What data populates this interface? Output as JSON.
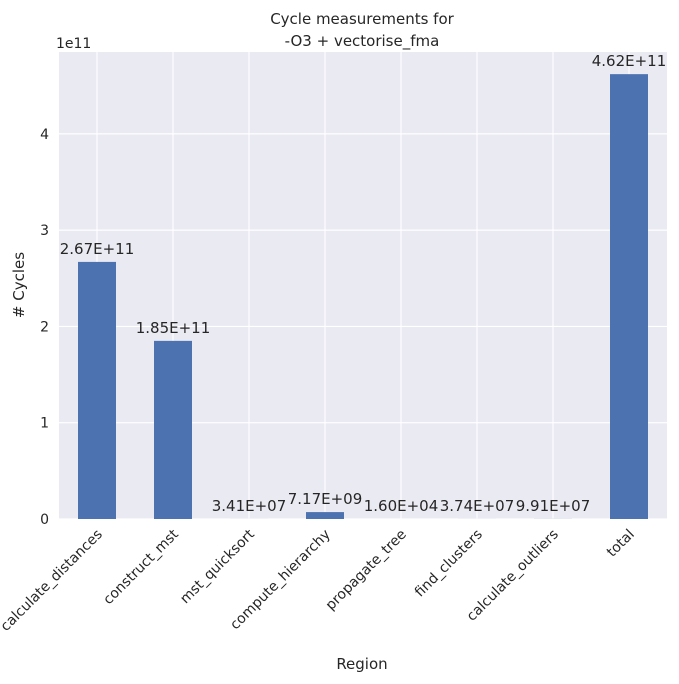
{
  "chart_data": {
    "type": "bar",
    "title_line1": "Cycle measurements for",
    "title_line2": "-O3 + vectorise_fma",
    "xlabel": "Region",
    "ylabel": "# Cycles",
    "y_offset_label": "1e11",
    "ylim": [
      0,
      485000000000.0
    ],
    "yticks": [
      0,
      100000000000.0,
      200000000000.0,
      300000000000.0,
      400000000000.0
    ],
    "ytick_labels": [
      "0",
      "1",
      "2",
      "3",
      "4"
    ],
    "grid": true,
    "bar_color": "#4c72b0",
    "background_color": "#eaeaf2",
    "categories": [
      "calculate_distances",
      "construct_mst",
      "mst_quicksort",
      "compute_hierarchy",
      "propagate_tree",
      "find_clusters",
      "calculate_outliers",
      "total"
    ],
    "values": [
      267000000000.0,
      185000000000.0,
      34100000.0,
      7170000000.0,
      16000.0,
      37400000.0,
      99100000.0,
      462000000000.0
    ],
    "data_labels": [
      "2.67E+11",
      "1.85E+11",
      "3.41E+07",
      "7.17E+09",
      "1.60E+04",
      "3.74E+07",
      "9.91E+07",
      "4.62E+11"
    ]
  }
}
